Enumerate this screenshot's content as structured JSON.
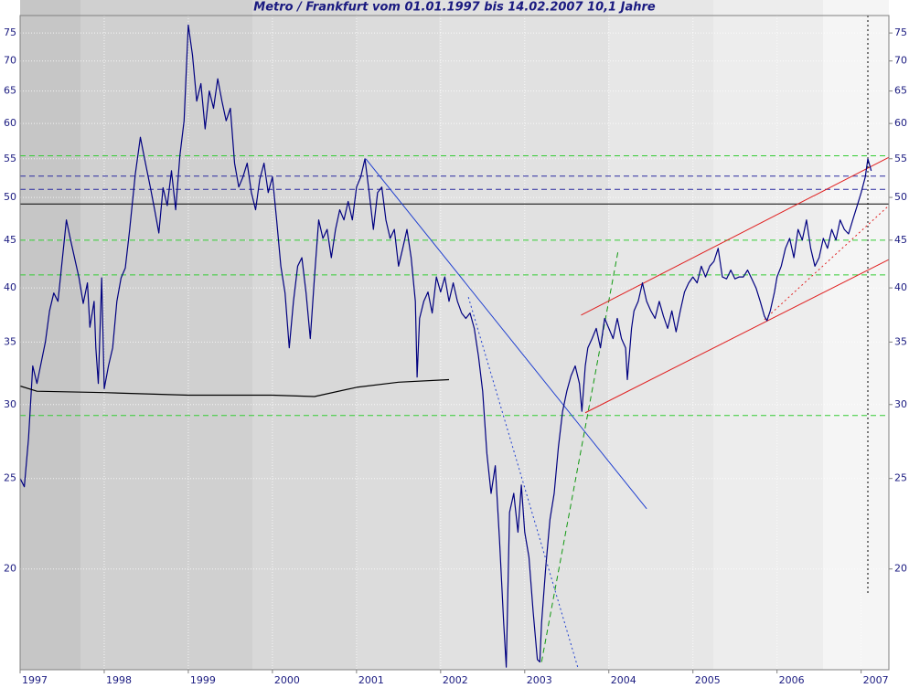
{
  "chart_data": {
    "type": "line",
    "title": "Metro / Frankfurt vom 01.01.1997 bis 14.02.2007 10,1 Jahre",
    "log_scale": true,
    "grid": true,
    "xlim": [
      1997,
      2007.33
    ],
    "xticks": [
      1997,
      1998,
      1999,
      2000,
      2001,
      2002,
      2003,
      2004,
      2005,
      2006,
      2007
    ],
    "ylim": [
      15.6,
      78.3
    ],
    "yticks": [
      20,
      25,
      30,
      35,
      40,
      45,
      50,
      55,
      60,
      65,
      70,
      75
    ],
    "series": [
      {
        "color": "#000080",
        "x": [
          1997.0,
          1997.05,
          1997.1,
          1997.15,
          1997.2,
          1997.3,
          1997.35,
          1997.4,
          1997.45,
          1997.55,
          1997.6,
          1997.7,
          1997.75,
          1997.8,
          1997.83,
          1997.88,
          1997.9,
          1997.93,
          1997.97,
          1998.0,
          1998.05,
          1998.1,
          1998.15,
          1998.2,
          1998.25,
          1998.3,
          1998.37,
          1998.43,
          1998.48,
          1998.55,
          1998.6,
          1998.65,
          1998.7,
          1998.75,
          1998.8,
          1998.85,
          1998.9,
          1998.95,
          1999.0,
          1999.05,
          1999.1,
          1999.15,
          1999.2,
          1999.25,
          1999.3,
          1999.35,
          1999.4,
          1999.45,
          1999.5,
          1999.55,
          1999.6,
          1999.65,
          1999.7,
          1999.75,
          1999.8,
          1999.85,
          1999.9,
          1999.95,
          2000.0,
          2000.05,
          2000.1,
          2000.15,
          2000.2,
          2000.25,
          2000.3,
          2000.35,
          2000.4,
          2000.45,
          2000.5,
          2000.55,
          2000.6,
          2000.65,
          2000.7,
          2000.75,
          2000.8,
          2000.85,
          2000.9,
          2000.95,
          2001.0,
          2001.05,
          2001.1,
          2001.15,
          2001.2,
          2001.25,
          2001.3,
          2001.35,
          2001.4,
          2001.45,
          2001.5,
          2001.55,
          2001.6,
          2001.65,
          2001.7,
          2001.72,
          2001.75,
          2001.8,
          2001.85,
          2001.9,
          2001.95,
          2002.0,
          2002.05,
          2002.1,
          2002.15,
          2002.2,
          2002.25,
          2002.3,
          2002.35,
          2002.4,
          2002.45,
          2002.5,
          2002.55,
          2002.6,
          2002.65,
          2002.7,
          2002.75,
          2002.78,
          2002.82,
          2002.87,
          2002.92,
          2002.96,
          2003.0,
          2003.05,
          2003.1,
          2003.15,
          2003.18,
          2003.2,
          2003.25,
          2003.3,
          2003.35,
          2003.4,
          2003.45,
          2003.5,
          2003.55,
          2003.6,
          2003.65,
          2003.68,
          2003.72,
          2003.75,
          2003.8,
          2003.85,
          2003.9,
          2003.95,
          2004.0,
          2004.05,
          2004.1,
          2004.15,
          2004.2,
          2004.22,
          2004.27,
          2004.3,
          2004.35,
          2004.4,
          2004.45,
          2004.5,
          2004.55,
          2004.6,
          2004.65,
          2004.7,
          2004.75,
          2004.8,
          2004.85,
          2004.9,
          2004.95,
          2005.0,
          2005.05,
          2005.1,
          2005.15,
          2005.2,
          2005.25,
          2005.3,
          2005.35,
          2005.4,
          2005.45,
          2005.5,
          2005.55,
          2005.6,
          2005.65,
          2005.7,
          2005.75,
          2005.8,
          2005.85,
          2005.88,
          2005.92,
          2005.97,
          2006.0,
          2006.05,
          2006.1,
          2006.15,
          2006.2,
          2006.25,
          2006.3,
          2006.35,
          2006.4,
          2006.45,
          2006.5,
          2006.55,
          2006.6,
          2006.65,
          2006.7,
          2006.75,
          2006.8,
          2006.85,
          2006.9,
          2006.95,
          2007.0,
          2007.05,
          2007.08,
          2007.12
        ],
        "values": [
          25,
          24.5,
          27.6,
          33,
          31.6,
          35,
          37.8,
          39.5,
          38.7,
          47.3,
          45,
          41,
          38.5,
          40.5,
          36.3,
          38.7,
          34.5,
          31.6,
          41,
          31.2,
          33,
          34.5,
          38.7,
          41,
          42,
          46,
          53,
          58,
          55,
          51.2,
          48.5,
          45.8,
          51.2,
          49,
          53.4,
          48.5,
          55.4,
          60.4,
          76.5,
          71,
          63.4,
          66.2,
          59.2,
          65,
          62.3,
          67,
          63.4,
          60.4,
          62.3,
          54.4,
          51.3,
          52.6,
          54.4,
          50.6,
          48.5,
          52.3,
          54.4,
          50.6,
          52.6,
          47.3,
          42.2,
          39.5,
          34.5,
          38.7,
          42.2,
          43.1,
          39.5,
          35.3,
          41.1,
          47.3,
          45.2,
          46.2,
          43.1,
          46.2,
          48.5,
          47.3,
          49.5,
          47.3,
          51.3,
          52.6,
          55,
          50.6,
          46.2,
          50.6,
          51.3,
          47.3,
          45.2,
          46.2,
          42.2,
          44.1,
          46.2,
          43.1,
          38.7,
          32.1,
          37.1,
          38.7,
          39.6,
          37.6,
          41.1,
          39.6,
          41.1,
          38.7,
          40.5,
          38.7,
          37.6,
          37.1,
          37.6,
          36.2,
          33.8,
          31,
          26.6,
          24.1,
          25.8,
          21.5,
          17.5,
          15.7,
          23,
          24.1,
          21.9,
          24.6,
          21.9,
          20.6,
          18,
          16,
          15.9,
          17.5,
          20.1,
          22.6,
          24.1,
          27,
          29.5,
          31,
          32.2,
          33,
          31.6,
          29.5,
          33,
          34.5,
          35.3,
          36.2,
          34.5,
          37.1,
          36.2,
          35.3,
          37.1,
          35.3,
          34.5,
          31.9,
          36.2,
          37.8,
          38.7,
          40.5,
          38.7,
          37.8,
          37.1,
          38.7,
          37.3,
          36.2,
          37.8,
          35.9,
          37.8,
          39.6,
          40.5,
          41.1,
          40.5,
          42.2,
          41.1,
          42.2,
          42.7,
          44.1,
          41.1,
          40.9,
          41.8,
          40.9,
          41.1,
          41.1,
          41.8,
          40.9,
          40,
          38.7,
          37.3,
          36.9,
          37.8,
          39.6,
          41.1,
          42.2,
          44.1,
          45.2,
          43.1,
          46.2,
          45,
          47.3,
          44.1,
          42.2,
          43.1,
          45.2,
          44.1,
          46.2,
          45,
          47.3,
          46.2,
          45.7,
          47.3,
          48.9,
          50.6,
          52.6,
          55,
          53.4
        ]
      },
      {
        "color": "#000000",
        "x": [
          1997.0,
          1997.2,
          1998.0,
          1999.0,
          2000.0,
          2000.5,
          2001.0,
          2001.5,
          2002.1
        ],
        "values": [
          31.4,
          31.0,
          30.9,
          30.7,
          30.7,
          30.6,
          31.3,
          31.7,
          31.9
        ]
      }
    ],
    "hlines": [
      {
        "value": 55.4,
        "color": "#33cc33",
        "dash": "dashed"
      },
      {
        "value": 52.7,
        "color": "#2a2aa0",
        "dash": "dashed"
      },
      {
        "value": 51.0,
        "color": "#2a2aa0",
        "dash": "dashed"
      },
      {
        "value": 49.2,
        "color": "#000000",
        "dash": "solid"
      },
      {
        "value": 45.0,
        "color": "#33cc33",
        "dash": "dashed"
      },
      {
        "value": 41.3,
        "color": "#33cc33",
        "dash": "dashed"
      },
      {
        "value": 29.2,
        "color": "#33cc33",
        "dash": "dashed"
      }
    ],
    "trendlines": [
      {
        "x": [
          2001.11,
          2004.45
        ],
        "values": [
          55,
          23.2
        ],
        "color": "#2040d0",
        "dash": "solid"
      },
      {
        "x": [
          2002.33,
          2003.63
        ],
        "values": [
          39.1,
          15.7
        ],
        "color": "#2040d0",
        "dash": "dotted"
      },
      {
        "x": [
          2003.2,
          2004.11
        ],
        "values": [
          15.9,
          43.8
        ],
        "color": "#119911",
        "dash": "dashed"
      },
      {
        "x": [
          2003.67,
          2007.33
        ],
        "values": [
          37.4,
          55.2
        ],
        "color": "#e02020",
        "dash": "solid"
      },
      {
        "x": [
          2003.72,
          2007.33
        ],
        "values": [
          29.4,
          42.9
        ],
        "color": "#e02020",
        "dash": "solid"
      },
      {
        "x": [
          2005.85,
          2007.33
        ],
        "values": [
          37.0,
          49.0
        ],
        "color": "#e02020",
        "dash": "dotted"
      },
      {
        "x": [
          2007.08,
          2007.08
        ],
        "values": [
          78.3,
          18.8
        ],
        "color": "#000000",
        "dash": "dotted"
      }
    ]
  }
}
